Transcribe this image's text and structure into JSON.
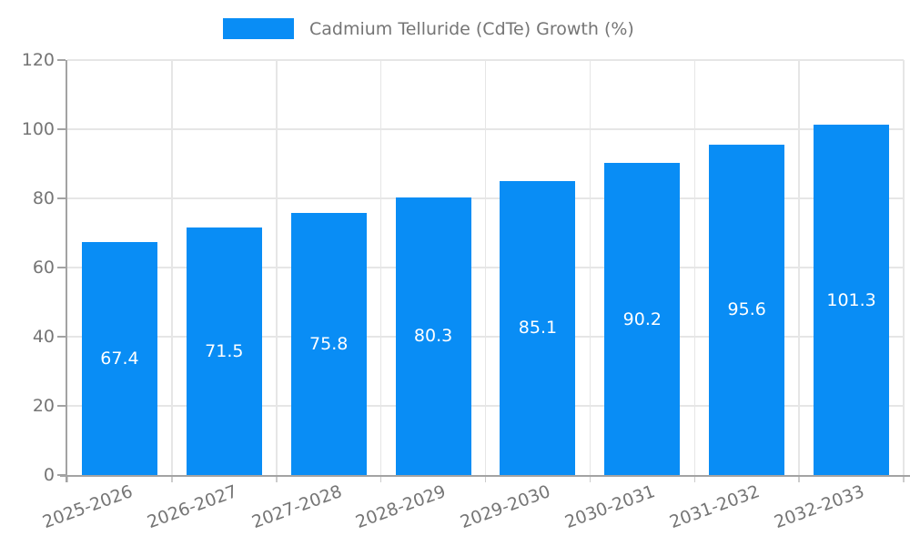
{
  "chart_data": {
    "type": "bar",
    "title": "",
    "legend": [
      "Cadmium Telluride (CdTe) Growth (%)"
    ],
    "legend_position": "top",
    "categories": [
      "2025-2026",
      "2026-2027",
      "2027-2028",
      "2028-2029",
      "2029-2030",
      "2030-2031",
      "2031-2032",
      "2032-2033"
    ],
    "series": [
      {
        "name": "Cadmium Telluride (CdTe) Growth (%)",
        "values": [
          67.4,
          71.5,
          75.8,
          80.3,
          85.1,
          90.2,
          95.6,
          101.3
        ]
      }
    ],
    "value_labels": [
      "67.4",
      "71.5",
      "75.8",
      "80.3",
      "85.1",
      "90.2",
      "95.6",
      "101.3"
    ],
    "xlabel": "",
    "ylabel": "",
    "ylim": [
      0,
      120
    ],
    "yticks": [
      0,
      20,
      40,
      60,
      80,
      100,
      120
    ],
    "grid": true,
    "colors": {
      "bar": "#098df5",
      "axis": "#a3a3a3",
      "grid": "#e6e6e6",
      "tick_text": "#757575",
      "value_label_text": "#ffffff",
      "background": "#ffffff"
    }
  }
}
